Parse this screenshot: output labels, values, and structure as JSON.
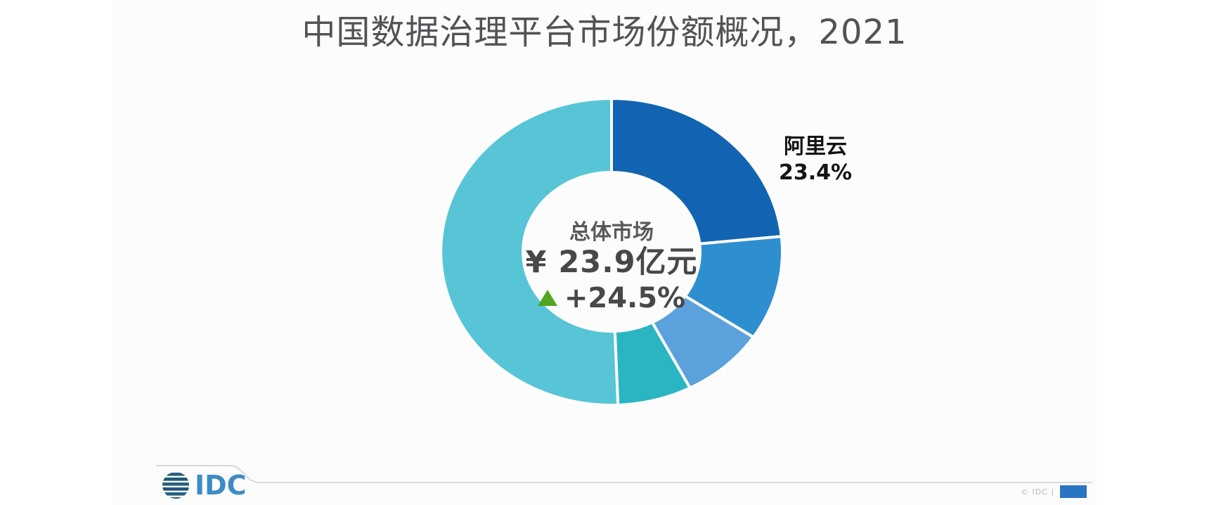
{
  "title": "中国数据治理平台市场份额概况，2021",
  "chart_data": {
    "type": "pie",
    "subtype": "donut",
    "title": "中国数据治理平台市场份额概况，2021",
    "start_angle_deg": 0,
    "direction": "clockwise",
    "legend": "none",
    "segments": [
      {
        "name": "阿里云",
        "value": 23.4,
        "color": "#1264B2",
        "labeled": true
      },
      {
        "name": "",
        "value": 11.0,
        "color": "#2E8FD0",
        "labeled": false
      },
      {
        "name": "",
        "value": 8.0,
        "color": "#5BA1DC",
        "labeled": false
      },
      {
        "name": "",
        "value": 7.0,
        "color": "#2AB5C3",
        "labeled": false
      },
      {
        "name": "",
        "value": 50.6,
        "color": "#57C5D6",
        "labeled": false
      }
    ],
    "divider_color": "#FFFFFF",
    "center_text": [
      "总体市场",
      "¥ 23.9亿元",
      "+24.5%"
    ]
  },
  "center": {
    "market_label": "总体市场",
    "market_size": "¥ 23.9亿元",
    "growth": "+24.5%",
    "growth_triangle_color": "#52A51E"
  },
  "callout": {
    "name": "阿里云",
    "value": "23.4%"
  },
  "footer": {
    "logo_text": "IDC",
    "copyright": "© IDC |",
    "accent_color": "#2A74C4"
  }
}
